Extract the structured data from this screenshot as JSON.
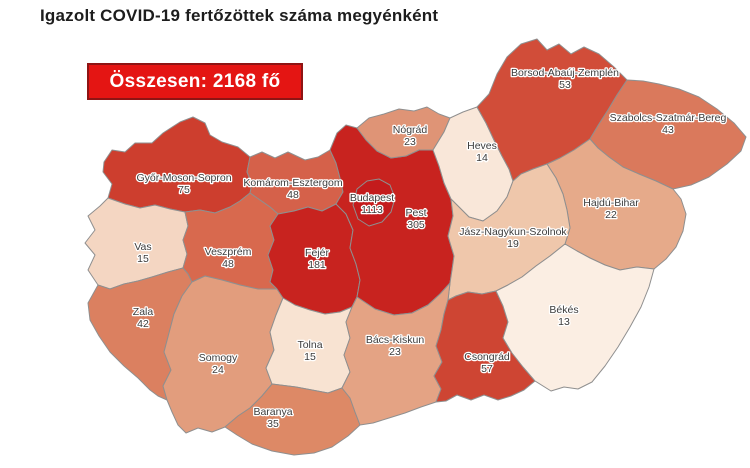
{
  "title": "Igazolt COVID-19 fertőzöttek száma megyénként",
  "total_box": {
    "label": "Összesen: 2168 fő",
    "background": "#e41513",
    "border": "#8e1414",
    "text_color": "#ffffff"
  },
  "map": {
    "border_color": "#8f8f8f",
    "label_color": "#3c3c3c",
    "counties": [
      {
        "id": "gyor-moson-sopron",
        "name": "Győr-Moson-Sopron",
        "value": 75,
        "color": "#cd3e2e"
      },
      {
        "id": "komarom-esztergom",
        "name": "Komárom-Esztergom",
        "value": 48,
        "color": "#d5614a"
      },
      {
        "id": "vas",
        "name": "Vas",
        "value": 15,
        "color": "#f4d6c2"
      },
      {
        "id": "veszprem",
        "name": "Veszprém",
        "value": 48,
        "color": "#d8694e"
      },
      {
        "id": "zala",
        "name": "Zala",
        "value": 42,
        "color": "#db8060"
      },
      {
        "id": "somogy",
        "name": "Somogy",
        "value": 24,
        "color": "#e29d7d"
      },
      {
        "id": "fejer",
        "name": "Fejér",
        "value": 181,
        "color": "#c8231f"
      },
      {
        "id": "tolna",
        "name": "Tolna",
        "value": 15,
        "color": "#f8e3d2"
      },
      {
        "id": "baranya",
        "name": "Baranya",
        "value": 35,
        "color": "#dd8966"
      },
      {
        "id": "pest",
        "name": "Pest",
        "value": 305,
        "color": "#c8231f"
      },
      {
        "id": "budapest",
        "name": "Budapest",
        "value": 1113,
        "color": "#c41b1c"
      },
      {
        "id": "nograd",
        "name": "Nógrád",
        "value": 23,
        "color": "#df9476"
      },
      {
        "id": "heves",
        "name": "Heves",
        "value": 14,
        "color": "#f9e7d9"
      },
      {
        "id": "borsod-abauj-zemplen",
        "name": "Borsod-Abaúj-Zemplén",
        "value": 53,
        "color": "#d14d39"
      },
      {
        "id": "szabolcs-szatmar-bereg",
        "name": "Szabolcs-Szatmár-Bereg",
        "value": 43,
        "color": "#da795c"
      },
      {
        "id": "hajdu-bihar",
        "name": "Hajdú-Bihar",
        "value": 22,
        "color": "#e6aa8a"
      },
      {
        "id": "jasz-nagykun-szolnok",
        "name": "Jász-Nagykun-Szolnok",
        "value": 19,
        "color": "#efc7ab"
      },
      {
        "id": "bacs-kiskun",
        "name": "Bács-Kiskun",
        "value": 23,
        "color": "#e4a384"
      },
      {
        "id": "csongrad",
        "name": "Csongrád",
        "value": 57,
        "color": "#ce4533"
      },
      {
        "id": "bekes",
        "name": "Békés",
        "value": 13,
        "color": "#fbeee3"
      }
    ]
  },
  "chart_data": {
    "type": "heatmap",
    "title": "Igazolt COVID-19 fertőzöttek száma megyénként",
    "subtitle": "Összesen: 2168 fő",
    "categories": [
      "Budapest",
      "Pest",
      "Fejér",
      "Győr-Moson-Sopron",
      "Csongrád",
      "Borsod-Abaúj-Zemplén",
      "Komárom-Esztergom",
      "Veszprém",
      "Szabolcs-Szatmár-Bereg",
      "Zala",
      "Baranya",
      "Somogy",
      "Nógrád",
      "Bács-Kiskun",
      "Hajdú-Bihar",
      "Jász-Nagykun-Szolnok",
      "Vas",
      "Tolna",
      "Heves",
      "Békés"
    ],
    "values": [
      1113,
      305,
      181,
      75,
      57,
      53,
      48,
      48,
      43,
      42,
      35,
      24,
      23,
      23,
      22,
      19,
      15,
      15,
      14,
      13
    ],
    "total": 2168,
    "legend_position": "none",
    "note": "choropleth map of Hungary, darker red = more cases"
  }
}
